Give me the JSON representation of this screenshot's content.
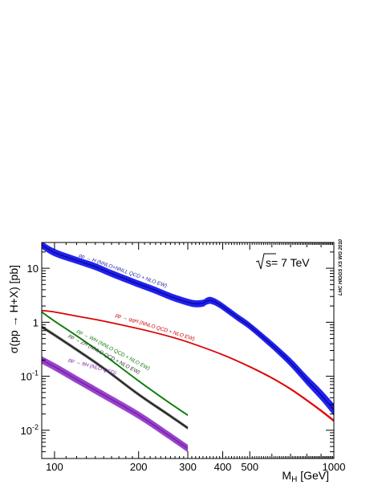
{
  "chart_data": {
    "type": "line",
    "title": "",
    "xlabel": {
      "main": "M",
      "sub": "H",
      "unit": " [GeV]"
    },
    "ylabel": "σ(pp → H+X) [pb]",
    "xscale": "log",
    "yscale": "log",
    "xlim": [
      90,
      1000
    ],
    "ylim": [
      0.003,
      30
    ],
    "grid": false,
    "x_ticks": [
      {
        "value": 100,
        "label": "100"
      },
      {
        "value": 200,
        "label": "200"
      },
      {
        "value": 300,
        "label": "300"
      },
      {
        "value": 400,
        "label": "400"
      },
      {
        "value": 500,
        "label": "500"
      },
      {
        "value": 1000,
        "label": "1000"
      }
    ],
    "y_ticks": [
      {
        "value": 10,
        "base": "10",
        "exp": ""
      },
      {
        "value": 1,
        "base": "1",
        "exp": ""
      },
      {
        "value": 0.1,
        "base": "10",
        "exp": "-1"
      },
      {
        "value": 0.01,
        "base": "10",
        "exp": "-2"
      }
    ],
    "energy_label": "s= 7 TeV",
    "side_label": "LHC HIGGS XS WG 2010",
    "series": [
      {
        "name": "pp → H (NNLO+NNLL QCD + NLO EW)",
        "color": "#0a0aa8",
        "band_color": "#2222ee",
        "x": [
          90,
          100,
          120,
          140,
          160,
          180,
          200,
          230,
          260,
          300,
          320,
          340,
          350,
          360,
          370,
          380,
          400,
          450,
          500,
          600,
          700,
          800,
          900,
          1000
        ],
        "y": [
          27,
          19.5,
          14,
          10.7,
          8.0,
          6.3,
          5.1,
          3.9,
          3.0,
          2.35,
          2.2,
          2.25,
          2.45,
          2.55,
          2.45,
          2.3,
          1.95,
          1.25,
          0.85,
          0.38,
          0.18,
          0.085,
          0.045,
          0.024
        ],
        "band_halfwidth_dex": [
          0.07,
          0.07,
          0.065,
          0.065,
          0.065,
          0.065,
          0.065,
          0.065,
          0.065,
          0.065,
          0.065,
          0.065,
          0.065,
          0.065,
          0.065,
          0.065,
          0.065,
          0.065,
          0.065,
          0.07,
          0.08,
          0.09,
          0.1,
          0.11
        ]
      },
      {
        "name": "pp → qqH (NNLO QCD + NLO EW)",
        "color": "#dd0000",
        "band_color": "#ee4444",
        "x": [
          90,
          100,
          120,
          150,
          200,
          250,
          300,
          400,
          500,
          600,
          700,
          800,
          900,
          1000
        ],
        "y": [
          1.65,
          1.55,
          1.3,
          1.05,
          0.76,
          0.57,
          0.43,
          0.25,
          0.15,
          0.093,
          0.058,
          0.036,
          0.023,
          0.015
        ],
        "band_halfwidth_dex": [
          0.012,
          0.012,
          0.012,
          0.012,
          0.012,
          0.012,
          0.012,
          0.014,
          0.016,
          0.018,
          0.02,
          0.022,
          0.024,
          0.026
        ]
      },
      {
        "name": "pp → WH (NNLO QCD + NLO EW)",
        "color": "#117711",
        "band_color": "#33aa33",
        "x": [
          90,
          100,
          120,
          150,
          200,
          250,
          300
        ],
        "y": [
          1.55,
          1.05,
          0.56,
          0.25,
          0.082,
          0.036,
          0.019
        ],
        "band_halfwidth_dex": [
          0.018,
          0.018,
          0.018,
          0.018,
          0.018,
          0.018,
          0.018
        ]
      },
      {
        "name": "pp → ZH (NNLO QCD + NLO EW)",
        "color": "#222222",
        "band_color": "#666666",
        "x": [
          90,
          100,
          120,
          150,
          200,
          250,
          300
        ],
        "y": [
          0.82,
          0.58,
          0.31,
          0.14,
          0.046,
          0.021,
          0.011
        ],
        "band_halfwidth_dex": [
          0.03,
          0.03,
          0.03,
          0.03,
          0.03,
          0.03,
          0.03
        ]
      },
      {
        "name": "pp → ttH (NLO QCD)",
        "color": "#7722aa",
        "band_color": "#9944cc",
        "x": [
          90,
          100,
          120,
          150,
          200,
          250,
          300
        ],
        "y": [
          0.2,
          0.15,
          0.087,
          0.045,
          0.019,
          0.0088,
          0.0046
        ],
        "band_halfwidth_dex": [
          0.07,
          0.07,
          0.07,
          0.07,
          0.07,
          0.07,
          0.07
        ]
      }
    ],
    "curve_labels": [
      {
        "text": "pp → H (NNLO+NNLL QCD + NLO EW)",
        "color": "#1a1aa0",
        "at_x": 122,
        "at_y": 16.5,
        "angle_deg": 19.5
      },
      {
        "text": "pp → qqH (NNLO QCD + NLO EW)",
        "color": "#cc0000",
        "at_x": 165,
        "at_y": 1.28,
        "angle_deg": 17
      },
      {
        "text": "pp → WH (NNLO QCD + NLO EW)",
        "color": "#117711",
        "at_x": 120,
        "at_y": 0.66,
        "angle_deg": 28
      },
      {
        "text": "pp → ZH (NNLO QCD + NLO EW)",
        "color": "#333333",
        "at_x": 112,
        "at_y": 0.54,
        "angle_deg": 28
      },
      {
        "text": "pp → ttH (NLO QCD)",
        "color": "#7722aa",
        "at_x": 112,
        "at_y": 0.19,
        "angle_deg": 16
      }
    ]
  }
}
